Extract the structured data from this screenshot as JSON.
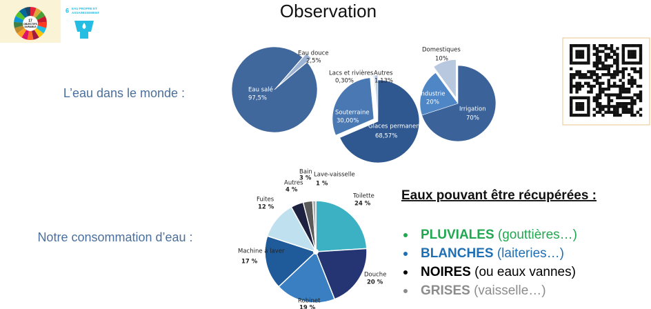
{
  "header": {
    "title": "Observation",
    "sdg_logo": [
      "17",
      "OBJECTIFS",
      "DURABLE"
    ],
    "sdg6": {
      "number": "6",
      "label": [
        "EAU PROPRE ET",
        "ASSAINISSEMENT"
      ]
    }
  },
  "sections": [
    "L’eau dans le monde :",
    "Notre consommation d’eau :"
  ],
  "recovery": {
    "heading": "Eaux pouvant être récupérées :",
    "items": [
      {
        "name": "PLUVIALES",
        "detail": "(gouttières…)",
        "color": "#1fa84f"
      },
      {
        "name": "BLANCHES",
        "detail": "(laiteries…)",
        "color": "#1f6fb5"
      },
      {
        "name": "NOIRES",
        "detail": "(ou eaux vannes)",
        "color": "#000000"
      },
      {
        "name": "GRISES",
        "detail": "(vaisselle…)",
        "color": "#8c8c8c"
      }
    ]
  },
  "chart_data": [
    {
      "type": "pie",
      "categories": [
        "Eau salé",
        "Eau douce"
      ],
      "values": [
        97.5,
        2.5
      ],
      "value_labels": [
        "97,5%",
        "2,5%"
      ],
      "colors": [
        "#41689c",
        "#9db3d4"
      ]
    },
    {
      "type": "pie",
      "categories": [
        "Glaces permanentes",
        "Souterraine",
        "Lacs et rivières",
        "Autres"
      ],
      "values": [
        68.57,
        30.0,
        0.3,
        1.13
      ],
      "value_labels": [
        "68,57%",
        "30,00%",
        "0,30%",
        "1,13%"
      ],
      "colors": [
        "#2f5890",
        "#4a78b2",
        "#8faad0",
        "#b9c9e0"
      ]
    },
    {
      "type": "pie",
      "categories": [
        "Irrigation",
        "Industrie",
        "Domestiques"
      ],
      "values": [
        70,
        20,
        10
      ],
      "value_labels": [
        "70%",
        "20%",
        "10%"
      ],
      "colors": [
        "#3b639a",
        "#4f86c6",
        "#b8c8de"
      ]
    },
    {
      "type": "pie",
      "categories": [
        "Toilette",
        "Douche",
        "Robinet",
        "Machine à laver",
        "Fuites",
        "Autres",
        "Bain",
        "Lave-vaisselle"
      ],
      "values": [
        24,
        20,
        19,
        17,
        12,
        4,
        3,
        1
      ],
      "value_labels": [
        "24 %",
        "20 %",
        "19 %",
        "17 %",
        "12 %",
        "4 %",
        "3 %",
        "1 %"
      ],
      "colors": [
        "#3bb1c3",
        "#253574",
        "#3a7fc1",
        "#1f5b9a",
        "#bfe0ee",
        "#1d2240",
        "#5a5a5a",
        "#a8a8a8"
      ]
    }
  ]
}
